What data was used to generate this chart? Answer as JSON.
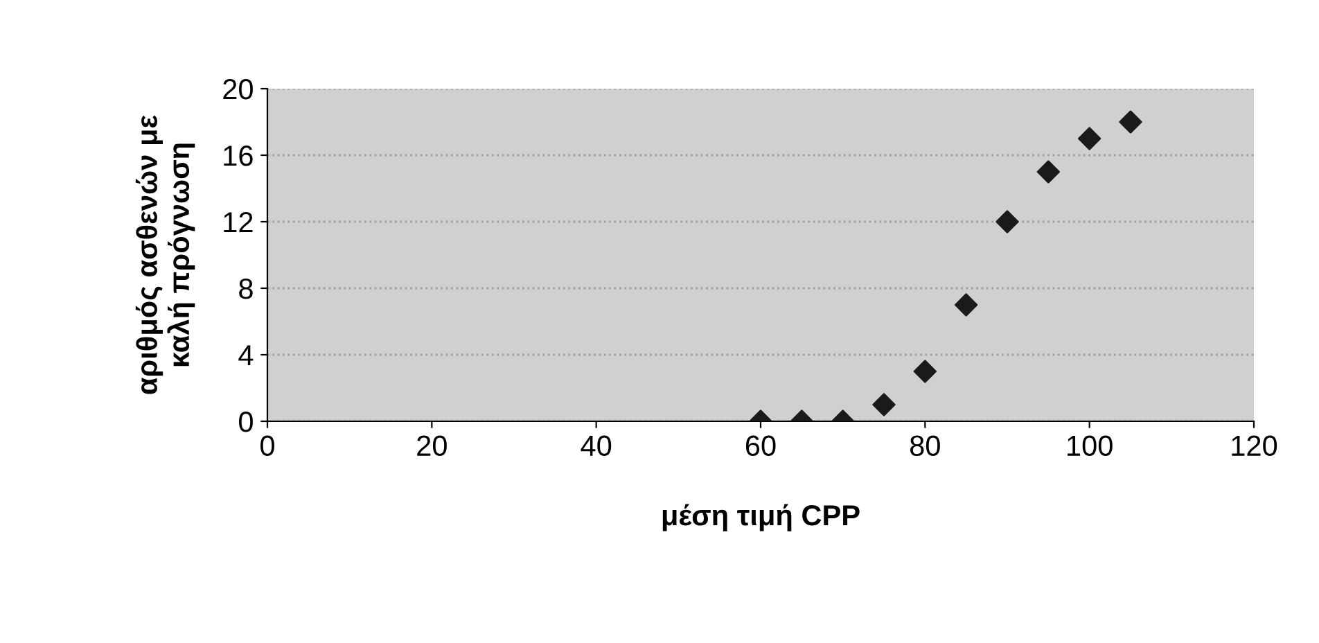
{
  "chart_data": {
    "type": "scatter",
    "xlabel": "μέση τιμή CPP",
    "ylabel": "αριθμός ασθενών με\nκαλή πρόγνωση",
    "x": [
      60,
      65,
      70,
      75,
      80,
      85,
      90,
      95,
      100,
      105
    ],
    "series": [
      {
        "color": "#1a1a1a",
        "values": [
          0,
          0,
          0,
          1,
          3,
          7,
          12,
          15,
          17,
          18
        ]
      }
    ],
    "marker": "diamond",
    "xlim": [
      0,
      120
    ],
    "ylim": [
      0,
      20
    ],
    "xticks": [
      0,
      20,
      40,
      60,
      80,
      100,
      120
    ],
    "yticks": [
      0,
      4,
      8,
      12,
      16,
      20
    ],
    "grid": "y",
    "legend": false
  }
}
